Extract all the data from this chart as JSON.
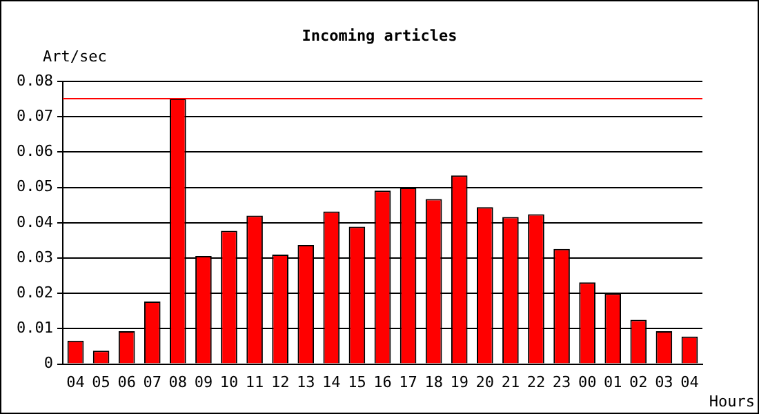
{
  "chart_data": {
    "type": "bar",
    "title": "Incoming articles",
    "xlabel": "Hours",
    "ylabel": "Art/sec",
    "categories": [
      "04",
      "05",
      "06",
      "07",
      "08",
      "09",
      "10",
      "11",
      "12",
      "13",
      "14",
      "15",
      "16",
      "17",
      "18",
      "19",
      "20",
      "21",
      "22",
      "23",
      "00",
      "01",
      "02",
      "03",
      "04"
    ],
    "values": [
      0.0066,
      0.0038,
      0.0093,
      0.0177,
      0.0751,
      0.0306,
      0.0377,
      0.042,
      0.031,
      0.0337,
      0.0432,
      0.0389,
      0.0491,
      0.0499,
      0.0467,
      0.0534,
      0.0444,
      0.0416,
      0.0424,
      0.0326,
      0.0231,
      0.02,
      0.0125,
      0.0093,
      0.0078
    ],
    "color": "#ff0000",
    "ylim": [
      0,
      0.08
    ],
    "yticks": [
      0,
      0.01,
      0.02,
      0.03,
      0.04,
      0.05,
      0.06,
      0.07,
      0.08
    ],
    "ref_lines": [
      {
        "axis": "y",
        "value": 0.0751,
        "color": "#ff0000"
      }
    ],
    "grid": "y"
  }
}
